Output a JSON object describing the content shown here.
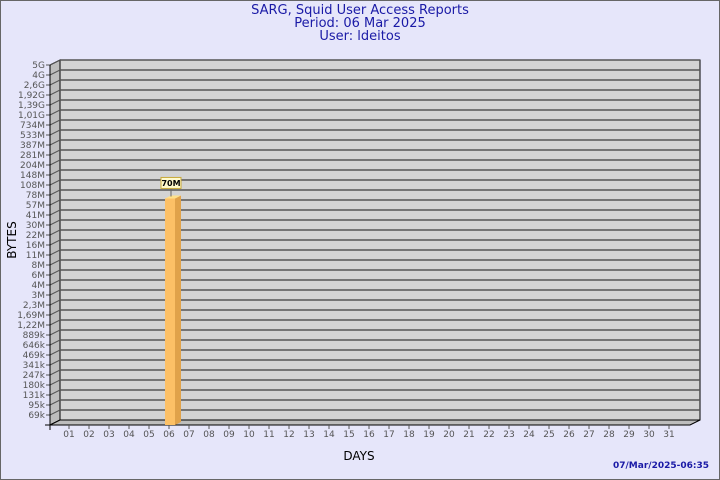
{
  "header": {
    "title": "SARG, Squid User Access Reports",
    "period": "Period: 06 Mar 2025",
    "user": "User: ldeitos"
  },
  "footer": {
    "timestamp": "07/Mar/2025-06:35"
  },
  "colors": {
    "background": "#e6e6fa",
    "plot": "#d3d3d3",
    "bar_front": "#fcc066",
    "bar_side": "#e0a24a",
    "bar_top": "#ffe08a",
    "label_bg": "#fffacd",
    "title": "#1a1aa6"
  },
  "chart_data": {
    "type": "bar",
    "style": "3d",
    "xlabel": "DAYS",
    "ylabel": "BYTES",
    "yscale": "log",
    "grid": true,
    "categories": [
      "01",
      "02",
      "03",
      "04",
      "05",
      "06",
      "07",
      "08",
      "09",
      "10",
      "11",
      "12",
      "13",
      "14",
      "15",
      "16",
      "17",
      "18",
      "19",
      "20",
      "21",
      "22",
      "23",
      "24",
      "25",
      "26",
      "27",
      "28",
      "29",
      "30",
      "31"
    ],
    "y_ticks": [
      {
        "label": "5G",
        "value": 5000000000
      },
      {
        "label": "4G",
        "value": 4000000000
      },
      {
        "label": "2,6G",
        "value": 2600000000
      },
      {
        "label": "1,92G",
        "value": 1920000000
      },
      {
        "label": "1,39G",
        "value": 1390000000
      },
      {
        "label": "1,01G",
        "value": 1010000000
      },
      {
        "label": "734M",
        "value": 734000000
      },
      {
        "label": "533M",
        "value": 533000000
      },
      {
        "label": "387M",
        "value": 387000000
      },
      {
        "label": "281M",
        "value": 281000000
      },
      {
        "label": "204M",
        "value": 204000000
      },
      {
        "label": "148M",
        "value": 148000000
      },
      {
        "label": "108M",
        "value": 108000000
      },
      {
        "label": "78M",
        "value": 78000000
      },
      {
        "label": "57M",
        "value": 57000000
      },
      {
        "label": "41M",
        "value": 41000000
      },
      {
        "label": "30M",
        "value": 30000000
      },
      {
        "label": "22M",
        "value": 22000000
      },
      {
        "label": "16M",
        "value": 16000000
      },
      {
        "label": "11M",
        "value": 11000000
      },
      {
        "label": "8M",
        "value": 8000000
      },
      {
        "label": "6M",
        "value": 6000000
      },
      {
        "label": "4M",
        "value": 4000000
      },
      {
        "label": "3M",
        "value": 3000000
      },
      {
        "label": "2,3M",
        "value": 2300000
      },
      {
        "label": "1,69M",
        "value": 1690000
      },
      {
        "label": "1,22M",
        "value": 1220000
      },
      {
        "label": "889k",
        "value": 889000
      },
      {
        "label": "646k",
        "value": 646000
      },
      {
        "label": "469k",
        "value": 469000
      },
      {
        "label": "341k",
        "value": 341000
      },
      {
        "label": "247k",
        "value": 247000
      },
      {
        "label": "180k",
        "value": 180000
      },
      {
        "label": "131k",
        "value": 131000
      },
      {
        "label": "95k",
        "value": 95000
      },
      {
        "label": "69k",
        "value": 69000
      }
    ],
    "bars": [
      {
        "day": "06",
        "value": 70000000,
        "label": "70M"
      }
    ]
  }
}
